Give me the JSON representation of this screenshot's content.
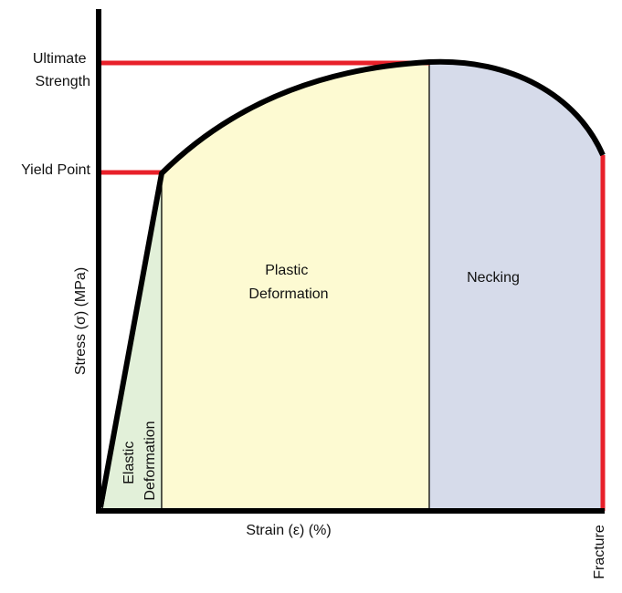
{
  "axes": {
    "y_label": "Stress (σ) (MPa)",
    "x_label": "Strain (ε) (%)"
  },
  "markers": {
    "ultimate_strength": [
      "Ultimate",
      "Strength"
    ],
    "yield_point": "Yield Point",
    "fracture": "Fracture"
  },
  "regions": {
    "elastic": [
      "Elastic",
      "Deformation"
    ],
    "plastic": [
      "Plastic",
      "Deformation"
    ],
    "necking": "Necking"
  },
  "colors": {
    "curve": "#000000",
    "marker_lines": "#e8202a",
    "elastic_fill": "#e2f0d9",
    "plastic_fill": "#fdfad2",
    "necking_fill": "#d6dbea"
  }
}
